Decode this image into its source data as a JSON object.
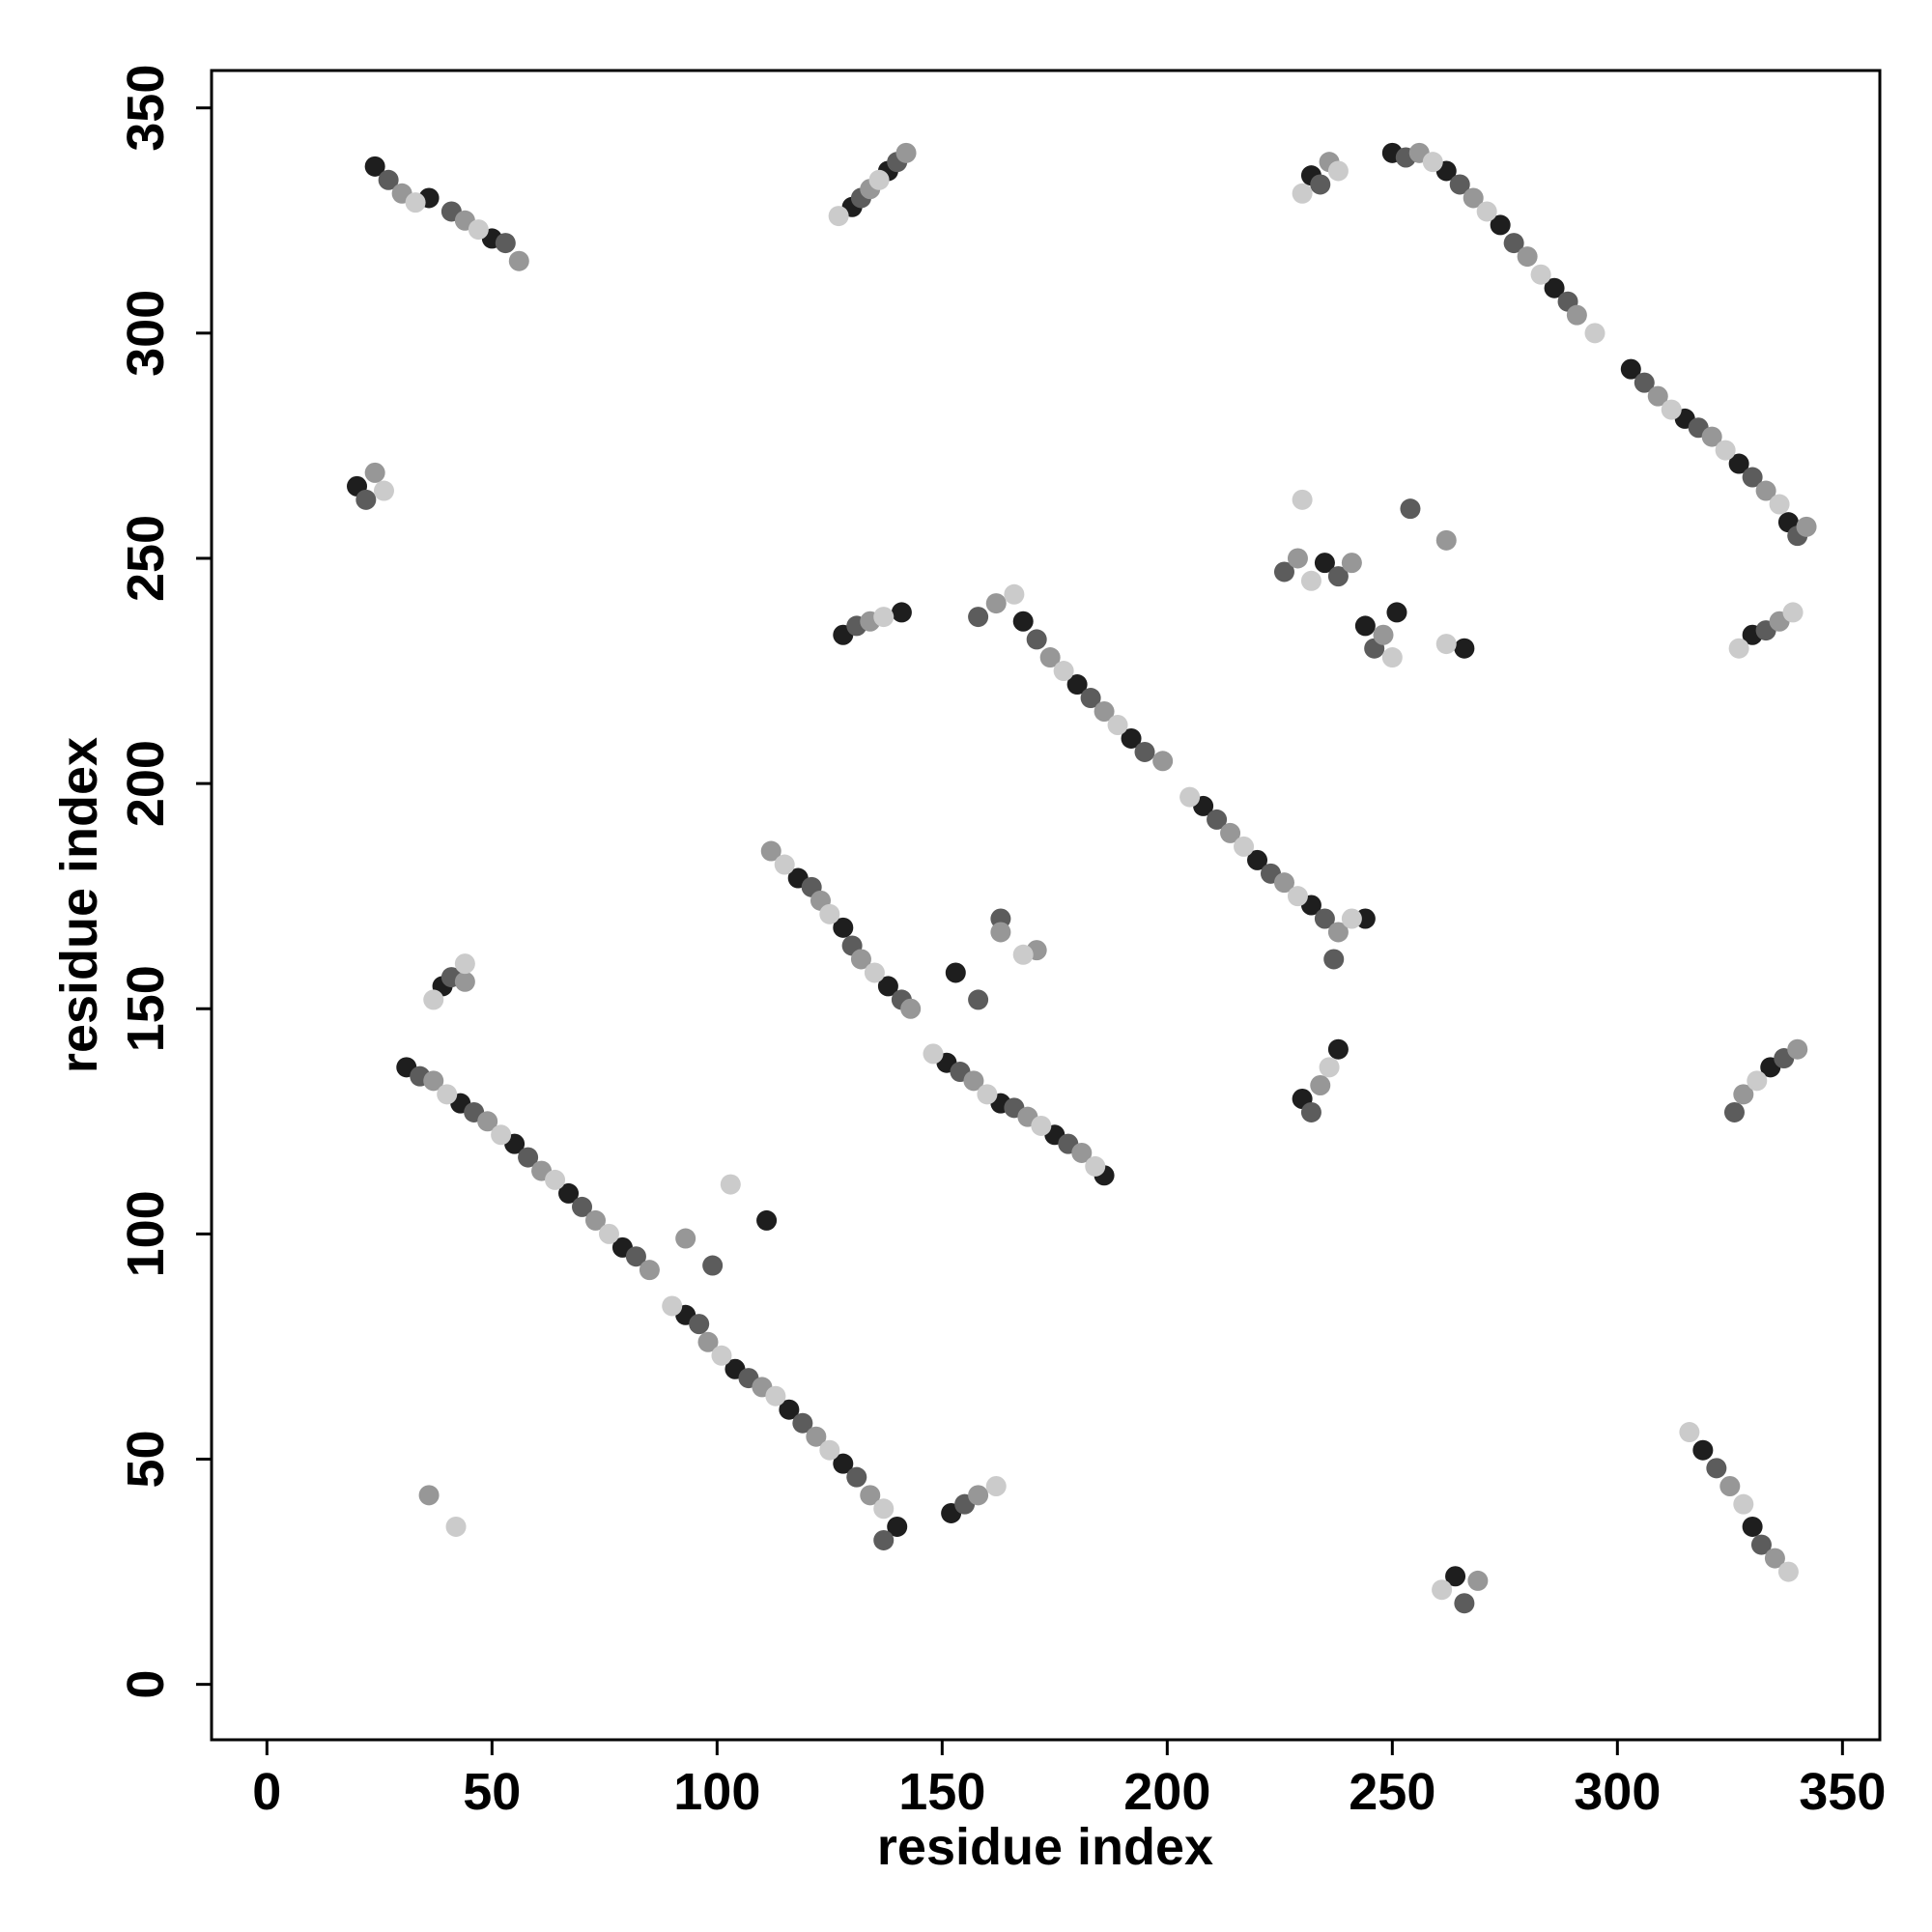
{
  "chart_data": {
    "type": "scatter",
    "xlabel": "residue index",
    "ylabel": "residue index",
    "xlim": [
      -12.3,
      358.3
    ],
    "ylim": [
      -12.3,
      358.3
    ],
    "xticks": [
      0,
      50,
      100,
      150,
      200,
      250,
      300,
      350
    ],
    "yticks": [
      0,
      50,
      100,
      150,
      200,
      250,
      300,
      350
    ],
    "grid": false,
    "series": [
      {
        "color": "#1e1e1e",
        "x": [
          24,
          36,
          50,
          130,
          138,
          232,
          250,
          262,
          274,
          286,
          303,
          315,
          327,
          338,
          330,
          20,
          128,
          141,
          235,
          244,
          251,
          266,
          168,
          180,
          192,
          208,
          220,
          232,
          244,
          118,
          128,
          138,
          151,
          163,
          175,
          186,
          153,
          39,
          31,
          43,
          55,
          67,
          79,
          93,
          104,
          116,
          128,
          140,
          111,
          152,
          230,
          238,
          334,
          264,
          319,
          330
        ],
        "values": [
          337,
          330,
          321,
          328,
          336,
          335,
          340,
          336,
          324,
          310,
          292,
          281,
          271,
          258,
          233,
          266,
          233,
          238,
          249,
          235,
          238,
          230,
          236,
          222,
          210,
          195,
          183,
          173,
          170,
          179,
          168,
          155,
          138,
          129,
          122,
          113,
          158,
          155,
          137,
          129,
          120,
          109,
          97,
          82,
          70,
          61,
          49,
          35,
          103,
          38,
          130,
          141,
          137,
          24,
          52,
          35
        ]
      },
      {
        "color": "#5c5c5c",
        "x": [
          27,
          41,
          53,
          132,
          140,
          234,
          253,
          265,
          277,
          289,
          306,
          318,
          330,
          340,
          333,
          22,
          131,
          226,
          238,
          246,
          254,
          158,
          171,
          183,
          195,
          211,
          223,
          235,
          237,
          121,
          130,
          141,
          154,
          166,
          178,
          163,
          158,
          41,
          34,
          46,
          58,
          70,
          82,
          96,
          107,
          119,
          131,
          137,
          99,
          155,
          232,
          326,
          337,
          266,
          322,
          332
        ],
        "values": [
          334,
          327,
          320,
          330,
          338,
          333,
          339,
          333,
          320,
          307,
          289,
          279,
          268,
          255,
          234,
          263,
          235,
          247,
          246,
          230,
          261,
          237,
          232,
          219,
          207,
          192,
          180,
          170,
          161,
          177,
          164,
          152,
          136,
          128,
          120,
          170,
          152,
          157,
          135,
          127,
          117,
          106,
          95,
          80,
          68,
          58,
          46,
          32,
          93,
          40,
          127,
          127,
          139,
          18,
          48,
          31
        ]
      },
      {
        "color": "#979797",
        "x": [
          30,
          44,
          56,
          134,
          142,
          236,
          256,
          268,
          280,
          291,
          309,
          321,
          333,
          342,
          336,
          24,
          134,
          229,
          241,
          248,
          262,
          162,
          174,
          186,
          199,
          214,
          226,
          238,
          112,
          123,
          132,
          143,
          157,
          169,
          181,
          171,
          163,
          44,
          37,
          49,
          61,
          73,
          85,
          98,
          110,
          122,
          134,
          93,
          36,
          158,
          234,
          328,
          340,
          269,
          325,
          335
        ],
        "values": [
          331,
          325,
          316,
          332,
          340,
          338,
          340,
          330,
          317,
          304,
          286,
          277,
          265,
          257,
          236,
          269,
          236,
          250,
          249,
          233,
          254,
          240,
          228,
          216,
          205,
          189,
          178,
          167,
          185,
          174,
          161,
          150,
          134,
          126,
          118,
          163,
          167,
          156,
          134,
          125,
          114,
          103,
          92,
          76,
          66,
          55,
          42,
          99,
          42,
          42,
          133,
          131,
          141,
          23,
          44,
          28
        ]
      },
      {
        "color": "#cbcbcb",
        "x": [
          33,
          47,
          127,
          136,
          230,
          238,
          259,
          271,
          283,
          295,
          312,
          324,
          336,
          327,
          339,
          26,
          137,
          232,
          230,
          250,
          262,
          166,
          177,
          189,
          205,
          217,
          229,
          241,
          115,
          125,
          135,
          148,
          160,
          172,
          184,
          168,
          37,
          44,
          40,
          52,
          64,
          76,
          90,
          101,
          113,
          125,
          137,
          103,
          42,
          162,
          236,
          331,
          261,
          316,
          328,
          338
        ],
        "values": [
          329,
          323,
          326,
          334,
          331,
          336,
          338,
          327,
          313,
          300,
          283,
          274,
          262,
          230,
          238,
          265,
          237,
          245,
          263,
          228,
          231,
          242,
          225,
          213,
          197,
          186,
          175,
          170,
          182,
          171,
          158,
          140,
          131,
          124,
          115,
          162,
          152,
          160,
          131,
          122,
          112,
          100,
          84,
          73,
          64,
          52,
          39,
          111,
          35,
          44,
          137,
          134,
          21,
          56,
          40,
          25
        ]
      }
    ]
  }
}
